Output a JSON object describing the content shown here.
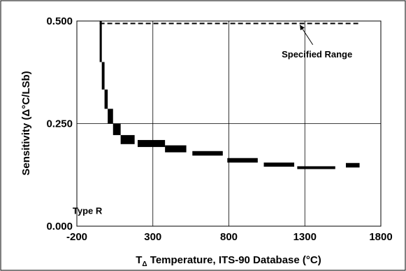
{
  "chart_data": {
    "type": "scatter",
    "title": "",
    "xlabel": {
      "pre": "T",
      "sub": "Δ",
      "post": " Temperature, ITS-90 Database (°C)"
    },
    "ylabel": "Sensitivity (Δ°C/LSb)",
    "xlim": [
      -200,
      1800
    ],
    "ylim": [
      0,
      0.5
    ],
    "xticks": [
      -200,
      300,
      800,
      1300,
      1800
    ],
    "yticks": [
      0,
      0.25,
      0.5
    ],
    "x_tick_labels": [
      "-200",
      "300",
      "800",
      "1300",
      "1800"
    ],
    "y_tick_labels": [
      "0.000",
      "0.250",
      "0.500"
    ],
    "grid": true,
    "legend": "none",
    "series": [
      {
        "style": "thick-stepped-band",
        "color": "#000000",
        "segments": [
          {
            "x": [
              -50,
              -36
            ],
            "y_low": 0.4,
            "y_high": 0.5
          },
          {
            "x": [
              -36,
              -18
            ],
            "y_low": 0.333,
            "y_high": 0.4
          },
          {
            "x": [
              -18,
              3
            ],
            "y_low": 0.286,
            "y_high": 0.333
          },
          {
            "x": [
              3,
              38
            ],
            "y_low": 0.25,
            "y_high": 0.286
          },
          {
            "x": [
              38,
              88
            ],
            "y_low": 0.222,
            "y_high": 0.25
          },
          {
            "x": [
              88,
              180
            ],
            "y_low": 0.2,
            "y_high": 0.222
          },
          {
            "x": [
              200,
              380
            ],
            "y_low": 0.193,
            "y_high": 0.21
          },
          {
            "x": [
              380,
              520
            ],
            "y_low": 0.18,
            "y_high": 0.197
          },
          {
            "x": [
              560,
              760
            ],
            "y_low": 0.172,
            "y_high": 0.183
          },
          {
            "x": [
              790,
              990
            ],
            "y_low": 0.155,
            "y_high": 0.166
          },
          {
            "x": [
              1030,
              1230
            ],
            "y_low": 0.145,
            "y_high": 0.155
          },
          {
            "x": [
              1250,
              1500
            ],
            "y_low": 0.14,
            "y_high": 0.146
          },
          {
            "x": [
              1570,
              1660
            ],
            "y_low": 0.143,
            "y_high": 0.154
          }
        ]
      }
    ],
    "specified_range": {
      "x": [
        -50,
        1668
      ],
      "y": 0.494,
      "style": "dashed"
    },
    "annotations": [
      {
        "text": "Specified Range",
        "x": 1380,
        "y": 0.42,
        "arrow_to": [
          1267,
          0.494
        ]
      },
      {
        "text": "Type R",
        "x": -150,
        "y": 0.02
      }
    ]
  }
}
